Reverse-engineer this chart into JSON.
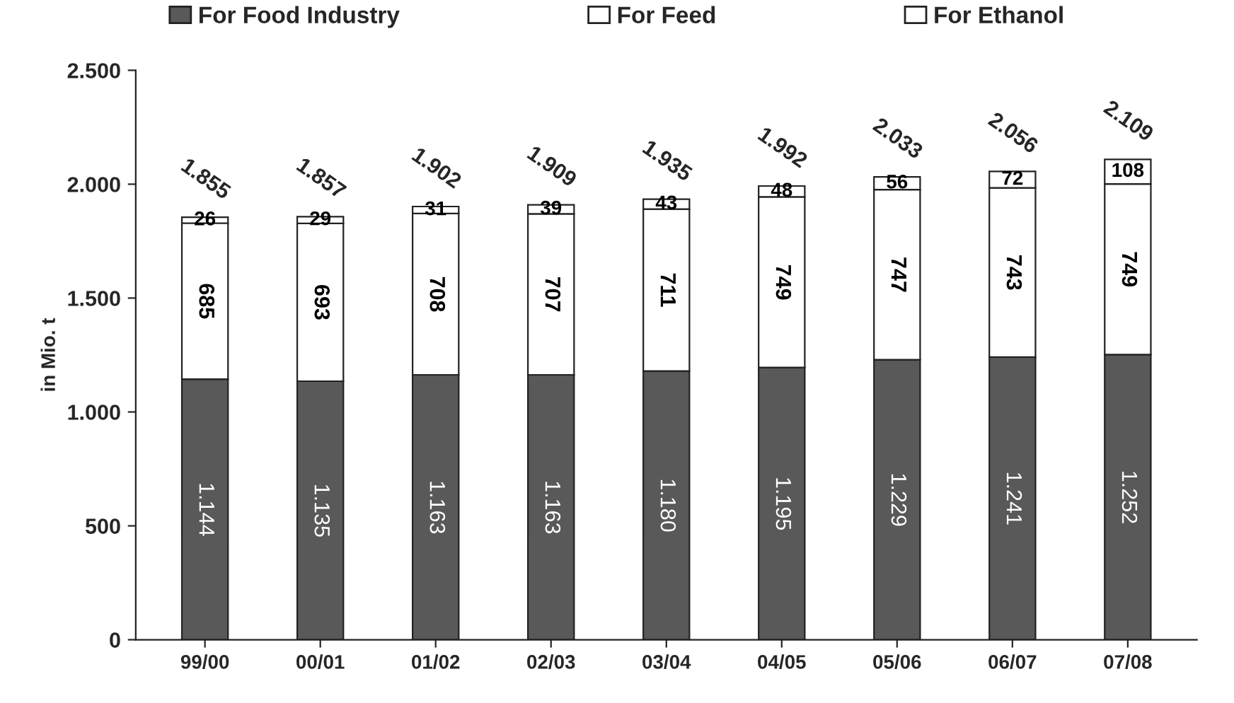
{
  "chart_data": {
    "type": "bar",
    "stacked": true,
    "ylabel": "in Mio. t",
    "categories": [
      "99/00",
      "00/01",
      "01/02",
      "02/03",
      "03/04",
      "04/05",
      "05/06",
      "06/07",
      "07/08"
    ],
    "series": [
      {
        "name": "For Food Industry",
        "color": "#595959",
        "values": [
          1144,
          1135,
          1163,
          1163,
          1180,
          1195,
          1229,
          1241,
          1252
        ],
        "value_labels": [
          "1.144",
          "1.135",
          "1.163",
          "1.163",
          "1.180",
          "1.195",
          "1.229",
          "1.241",
          "1.252"
        ]
      },
      {
        "name": "For Feed",
        "color": "#ffffff",
        "values": [
          685,
          693,
          708,
          707,
          711,
          749,
          747,
          743,
          749
        ],
        "value_labels": [
          "685",
          "693",
          "708",
          "707",
          "711",
          "749",
          "747",
          "743",
          "749"
        ]
      },
      {
        "name": "For Ethanol",
        "color": "#ffffff",
        "values": [
          26,
          29,
          31,
          39,
          43,
          48,
          56,
          72,
          108
        ],
        "value_labels": [
          "26",
          "29",
          "31",
          "39",
          "43",
          "48",
          "56",
          "72",
          "108"
        ]
      }
    ],
    "totals": [
      "1.855",
      "1.857",
      "1.902",
      "1.909",
      "1.935",
      "1.992",
      "2.033",
      "2.056",
      "2.109"
    ],
    "ylim": [
      0,
      2500
    ],
    "yticks": [
      {
        "value": 0,
        "label": "0"
      },
      {
        "value": 500,
        "label": "500"
      },
      {
        "value": 1000,
        "label": "1.000"
      },
      {
        "value": 1500,
        "label": "1.500"
      },
      {
        "value": 2000,
        "label": "2.000"
      },
      {
        "value": 2500,
        "label": "2.500"
      }
    ],
    "grid": false,
    "legend": "top"
  }
}
